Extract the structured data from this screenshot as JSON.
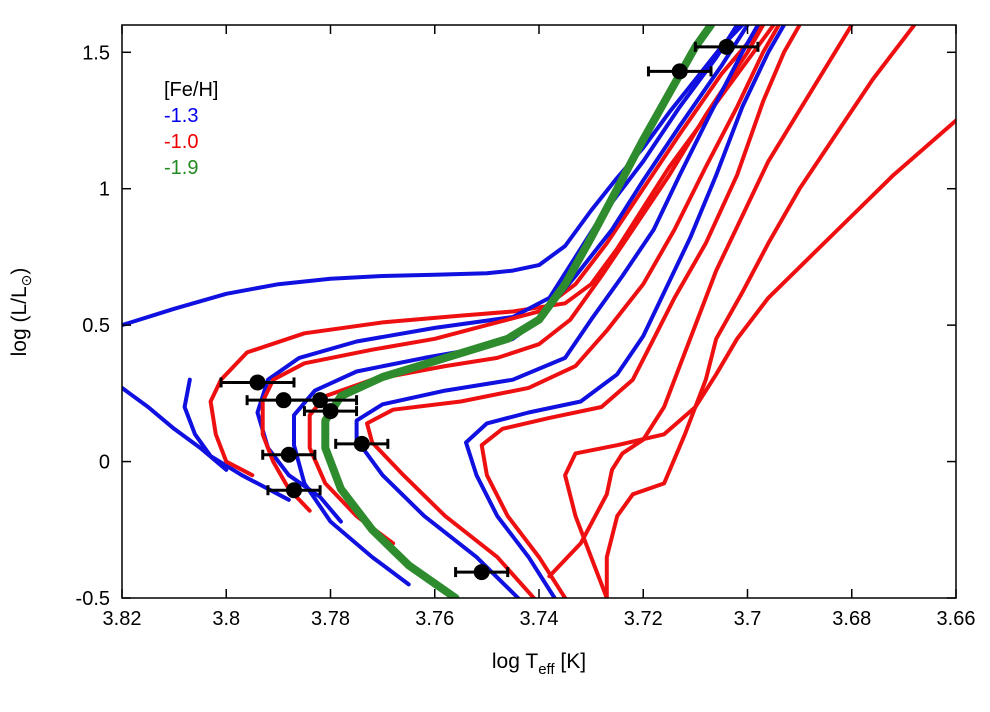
{
  "chart_data": {
    "type": "line",
    "xlabel": {
      "base": "log T",
      "sub": "eff",
      "tail": " [K]"
    },
    "ylabel": {
      "base": "log (L/L",
      "sub": "⊙",
      "tail": ")"
    },
    "xlim": [
      3.82,
      3.66
    ],
    "ylim": [
      -0.5,
      1.6
    ],
    "x_ticks": [
      "3.82",
      "3.8",
      "3.78",
      "3.76",
      "3.74",
      "3.72",
      "3.7",
      "3.68",
      "3.66"
    ],
    "y_ticks": [
      "-0.5",
      "0",
      "0.5",
      "1",
      "1.5"
    ],
    "legend": {
      "title": "[Fe/H]",
      "placement": "top-left",
      "entries": [
        {
          "label": "-1.3",
          "color": "#0000ee"
        },
        {
          "label": "-1.0",
          "color": "#ee0000"
        },
        {
          "label": "-1.9",
          "color": "#228b22"
        }
      ]
    },
    "colors": {
      "blue": "#1010e0",
      "red": "#ee1010",
      "green": "#2e8b2e",
      "points": "#000000"
    },
    "series": [
      {
        "color": "blue",
        "width": 4,
        "points": [
          [
            3.82,
            0.5
          ],
          [
            3.81,
            0.56
          ],
          [
            3.8,
            0.615
          ],
          [
            3.79,
            0.65
          ],
          [
            3.78,
            0.67
          ],
          [
            3.77,
            0.68
          ],
          [
            3.76,
            0.685
          ],
          [
            3.75,
            0.69
          ],
          [
            3.745,
            0.7
          ],
          [
            3.74,
            0.72
          ],
          [
            3.735,
            0.79
          ],
          [
            3.73,
            0.92
          ],
          [
            3.725,
            1.04
          ],
          [
            3.72,
            1.15
          ],
          [
            3.715,
            1.28
          ],
          [
            3.71,
            1.4
          ],
          [
            3.705,
            1.52
          ],
          [
            3.701,
            1.6
          ]
        ]
      },
      {
        "color": "blue",
        "width": 4,
        "points": [
          [
            3.82,
            0.27
          ],
          [
            3.815,
            0.2
          ],
          [
            3.81,
            0.12
          ],
          [
            3.805,
            0.05
          ],
          [
            3.8,
            -0.03
          ]
        ]
      },
      {
        "color": "blue",
        "width": 4,
        "points": [
          [
            3.807,
            0.3
          ],
          [
            3.808,
            0.2
          ],
          [
            3.806,
            0.1
          ],
          [
            3.803,
            0.02
          ],
          [
            3.797,
            -0.05
          ],
          [
            3.788,
            -0.14
          ]
        ]
      },
      {
        "color": "red",
        "width": 4,
        "points": [
          [
            3.795,
            -0.05
          ],
          [
            3.8,
            0.0
          ],
          [
            3.802,
            0.1
          ],
          [
            3.803,
            0.22
          ],
          [
            3.801,
            0.3
          ],
          [
            3.796,
            0.4
          ],
          [
            3.785,
            0.47
          ],
          [
            3.77,
            0.51
          ],
          [
            3.755,
            0.535
          ],
          [
            3.745,
            0.55
          ],
          [
            3.735,
            0.58
          ],
          [
            3.73,
            0.65
          ],
          [
            3.725,
            0.78
          ],
          [
            3.72,
            0.93
          ],
          [
            3.715,
            1.08
          ],
          [
            3.71,
            1.21
          ],
          [
            3.705,
            1.34
          ],
          [
            3.7,
            1.47
          ],
          [
            3.695,
            1.6
          ]
        ]
      },
      {
        "color": "blue",
        "width": 4,
        "points": [
          [
            3.778,
            -0.22
          ],
          [
            3.782,
            -0.13
          ],
          [
            3.788,
            -0.05
          ],
          [
            3.792,
            0.05
          ],
          [
            3.794,
            0.18
          ],
          [
            3.792,
            0.3
          ],
          [
            3.786,
            0.38
          ],
          [
            3.775,
            0.44
          ],
          [
            3.76,
            0.49
          ],
          [
            3.745,
            0.53
          ],
          [
            3.738,
            0.6
          ],
          [
            3.733,
            0.75
          ],
          [
            3.728,
            0.9
          ],
          [
            3.72,
            1.1
          ],
          [
            3.713,
            1.3
          ],
          [
            3.706,
            1.48
          ],
          [
            3.702,
            1.6
          ]
        ]
      },
      {
        "color": "red",
        "width": 4,
        "points": [
          [
            3.784,
            -0.18
          ],
          [
            3.788,
            -0.1
          ],
          [
            3.791,
            0.0
          ],
          [
            3.793,
            0.1
          ],
          [
            3.793,
            0.22
          ],
          [
            3.791,
            0.3
          ],
          [
            3.785,
            0.36
          ],
          [
            3.772,
            0.41
          ],
          [
            3.76,
            0.45
          ],
          [
            3.75,
            0.5
          ],
          [
            3.74,
            0.55
          ],
          [
            3.733,
            0.65
          ],
          [
            3.727,
            0.8
          ],
          [
            3.72,
            1.0
          ],
          [
            3.713,
            1.2
          ],
          [
            3.705,
            1.42
          ],
          [
            3.697,
            1.6
          ]
        ]
      },
      {
        "color": "blue",
        "width": 4,
        "points": [
          [
            3.765,
            -0.45
          ],
          [
            3.772,
            -0.35
          ],
          [
            3.78,
            -0.22
          ],
          [
            3.785,
            -0.08
          ],
          [
            3.787,
            0.06
          ],
          [
            3.787,
            0.17
          ],
          [
            3.783,
            0.26
          ],
          [
            3.775,
            0.33
          ],
          [
            3.762,
            0.38
          ],
          [
            3.75,
            0.42
          ],
          [
            3.745,
            0.45
          ],
          [
            3.74,
            0.52
          ],
          [
            3.733,
            0.68
          ],
          [
            3.726,
            0.85
          ],
          [
            3.72,
            1.03
          ],
          [
            3.713,
            1.23
          ],
          [
            3.705,
            1.45
          ],
          [
            3.7,
            1.6
          ]
        ]
      },
      {
        "color": "red",
        "width": 4,
        "points": [
          [
            3.768,
            -0.3
          ],
          [
            3.775,
            -0.2
          ],
          [
            3.781,
            -0.08
          ],
          [
            3.784,
            0.05
          ],
          [
            3.784,
            0.17
          ],
          [
            3.781,
            0.24
          ],
          [
            3.772,
            0.3
          ],
          [
            3.758,
            0.35
          ],
          [
            3.748,
            0.38
          ],
          [
            3.74,
            0.43
          ],
          [
            3.734,
            0.52
          ],
          [
            3.728,
            0.68
          ],
          [
            3.722,
            0.85
          ],
          [
            3.715,
            1.05
          ],
          [
            3.708,
            1.27
          ],
          [
            3.7,
            1.5
          ],
          [
            3.697,
            1.6
          ]
        ]
      },
      {
        "color": "green",
        "width": 8,
        "points": [
          [
            3.756,
            -0.5
          ],
          [
            3.765,
            -0.38
          ],
          [
            3.772,
            -0.25
          ],
          [
            3.778,
            -0.1
          ],
          [
            3.781,
            0.05
          ],
          [
            3.781,
            0.15
          ],
          [
            3.778,
            0.24
          ],
          [
            3.77,
            0.31
          ],
          [
            3.758,
            0.38
          ],
          [
            3.746,
            0.45
          ],
          [
            3.74,
            0.52
          ],
          [
            3.735,
            0.65
          ],
          [
            3.73,
            0.82
          ],
          [
            3.725,
            1.0
          ],
          [
            3.72,
            1.18
          ],
          [
            3.715,
            1.35
          ],
          [
            3.71,
            1.52
          ],
          [
            3.707,
            1.6
          ]
        ]
      },
      {
        "color": "blue",
        "width": 4,
        "points": [
          [
            3.744,
            -0.5
          ],
          [
            3.752,
            -0.35
          ],
          [
            3.762,
            -0.2
          ],
          [
            3.77,
            -0.05
          ],
          [
            3.775,
            0.08
          ],
          [
            3.775,
            0.15
          ],
          [
            3.77,
            0.21
          ],
          [
            3.758,
            0.26
          ],
          [
            3.745,
            0.3
          ],
          [
            3.735,
            0.38
          ],
          [
            3.73,
            0.52
          ],
          [
            3.724,
            0.68
          ],
          [
            3.718,
            0.85
          ],
          [
            3.713,
            1.05
          ],
          [
            3.707,
            1.28
          ],
          [
            3.701,
            1.5
          ],
          [
            3.698,
            1.6
          ]
        ]
      },
      {
        "color": "red",
        "width": 4,
        "points": [
          [
            3.741,
            -0.5
          ],
          [
            3.748,
            -0.35
          ],
          [
            3.758,
            -0.2
          ],
          [
            3.766,
            -0.05
          ],
          [
            3.772,
            0.07
          ],
          [
            3.773,
            0.14
          ],
          [
            3.768,
            0.19
          ],
          [
            3.755,
            0.22
          ],
          [
            3.742,
            0.27
          ],
          [
            3.733,
            0.35
          ],
          [
            3.727,
            0.48
          ],
          [
            3.72,
            0.65
          ],
          [
            3.714,
            0.85
          ],
          [
            3.708,
            1.08
          ],
          [
            3.702,
            1.3
          ],
          [
            3.697,
            1.5
          ],
          [
            3.694,
            1.6
          ]
        ]
      },
      {
        "color": "blue",
        "width": 4,
        "points": [
          [
            3.737,
            -0.5
          ],
          [
            3.742,
            -0.35
          ],
          [
            3.748,
            -0.2
          ],
          [
            3.752,
            -0.05
          ],
          [
            3.754,
            0.07
          ],
          [
            3.75,
            0.14
          ],
          [
            3.742,
            0.18
          ],
          [
            3.732,
            0.22
          ],
          [
            3.725,
            0.32
          ],
          [
            3.72,
            0.46
          ],
          [
            3.716,
            0.62
          ],
          [
            3.711,
            0.82
          ],
          [
            3.706,
            1.05
          ],
          [
            3.701,
            1.3
          ],
          [
            3.696,
            1.5
          ],
          [
            3.693,
            1.6
          ]
        ]
      },
      {
        "color": "red",
        "width": 4,
        "points": [
          [
            3.735,
            -0.5
          ],
          [
            3.74,
            -0.35
          ],
          [
            3.746,
            -0.2
          ],
          [
            3.75,
            -0.05
          ],
          [
            3.751,
            0.06
          ],
          [
            3.747,
            0.12
          ],
          [
            3.738,
            0.16
          ],
          [
            3.728,
            0.2
          ],
          [
            3.722,
            0.3
          ],
          [
            3.718,
            0.45
          ],
          [
            3.714,
            0.6
          ],
          [
            3.708,
            0.8
          ],
          [
            3.702,
            1.05
          ],
          [
            3.697,
            1.32
          ],
          [
            3.693,
            1.5
          ],
          [
            3.69,
            1.6
          ]
        ]
      },
      {
        "color": "red",
        "width": 4,
        "points": [
          [
            3.727,
            -0.5
          ],
          [
            3.73,
            -0.35
          ],
          [
            3.733,
            -0.2
          ],
          [
            3.735,
            -0.05
          ],
          [
            3.733,
            0.03
          ],
          [
            3.725,
            0.06
          ],
          [
            3.716,
            0.1
          ],
          [
            3.71,
            0.2
          ],
          [
            3.706,
            0.32
          ],
          [
            3.702,
            0.45
          ],
          [
            3.696,
            0.6
          ],
          [
            3.688,
            0.75
          ],
          [
            3.68,
            0.9
          ],
          [
            3.672,
            1.05
          ],
          [
            3.66,
            1.25
          ]
        ]
      },
      {
        "color": "red",
        "width": 4,
        "points": [
          [
            3.738,
            -0.42
          ],
          [
            3.732,
            -0.3
          ],
          [
            3.727,
            -0.12
          ],
          [
            3.726,
            -0.03
          ],
          [
            3.724,
            0.03
          ],
          [
            3.72,
            0.08
          ],
          [
            3.716,
            0.2
          ],
          [
            3.713,
            0.35
          ],
          [
            3.71,
            0.5
          ],
          [
            3.706,
            0.7
          ],
          [
            3.701,
            0.9
          ],
          [
            3.696,
            1.1
          ],
          [
            3.688,
            1.35
          ],
          [
            3.68,
            1.6
          ]
        ]
      },
      {
        "color": "red",
        "width": 4,
        "points": [
          [
            3.727,
            -0.5
          ],
          [
            3.727,
            -0.35
          ],
          [
            3.725,
            -0.2
          ],
          [
            3.722,
            -0.12
          ],
          [
            3.716,
            -0.08
          ],
          [
            3.712,
            0.1
          ],
          [
            3.708,
            0.3
          ],
          [
            3.706,
            0.45
          ],
          [
            3.701,
            0.62
          ],
          [
            3.696,
            0.8
          ],
          [
            3.69,
            1.0
          ],
          [
            3.683,
            1.2
          ],
          [
            3.676,
            1.4
          ],
          [
            3.668,
            1.6
          ]
        ]
      }
    ],
    "observations": [
      {
        "x": 3.794,
        "y": 0.29,
        "xerr": 0.007
      },
      {
        "x": 3.789,
        "y": 0.225,
        "xerr": 0.007
      },
      {
        "x": 3.782,
        "y": 0.225,
        "xerr": 0.007
      },
      {
        "x": 3.78,
        "y": 0.185,
        "xerr": 0.005
      },
      {
        "x": 3.788,
        "y": 0.025,
        "xerr": 0.005
      },
      {
        "x": 3.774,
        "y": 0.065,
        "xerr": 0.005
      },
      {
        "x": 3.787,
        "y": -0.105,
        "xerr": 0.005
      },
      {
        "x": 3.751,
        "y": -0.405,
        "xerr": 0.005
      },
      {
        "x": 3.713,
        "y": 1.43,
        "xerr": 0.006
      },
      {
        "x": 3.704,
        "y": 1.52,
        "xerr": 0.006
      }
    ]
  }
}
